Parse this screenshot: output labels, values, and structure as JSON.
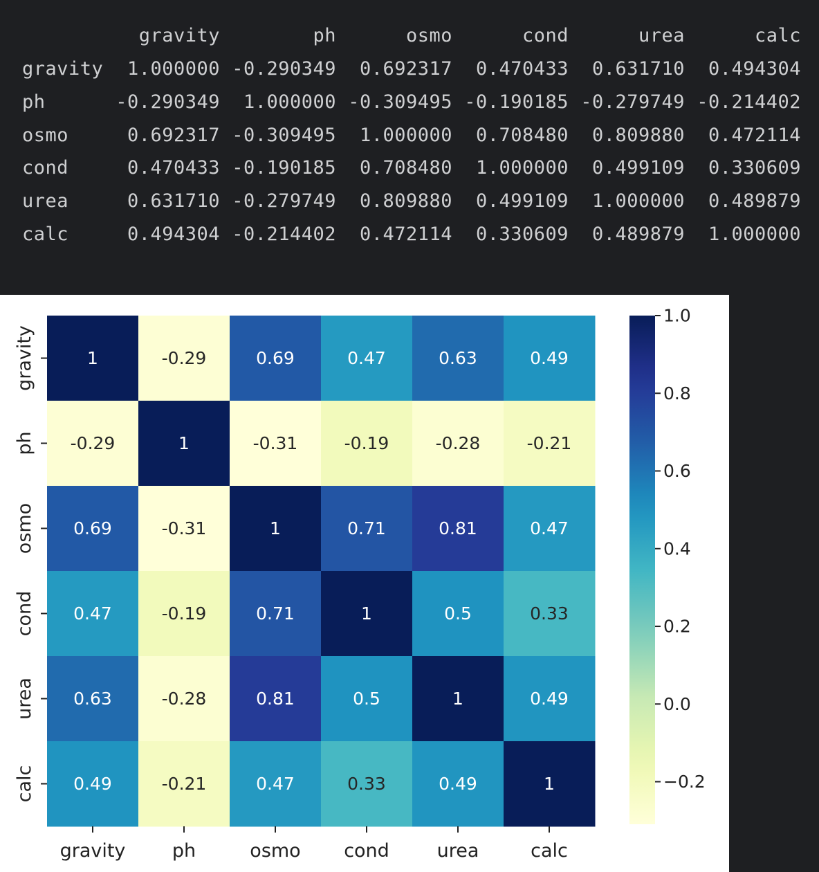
{
  "dataframe": {
    "columns": [
      "gravity",
      "ph",
      "osmo",
      "cond",
      "urea",
      "calc"
    ],
    "rows": [
      {
        "label": "gravity",
        "values": [
          "1.000000",
          "-0.290349",
          "0.692317",
          "0.470433",
          "0.631710",
          "0.494304"
        ]
      },
      {
        "label": "ph",
        "values": [
          "-0.290349",
          "1.000000",
          "-0.309495",
          "-0.190185",
          "-0.279749",
          "-0.214402"
        ]
      },
      {
        "label": "osmo",
        "values": [
          "0.692317",
          "-0.309495",
          "1.000000",
          "0.708480",
          "0.809880",
          "0.472114"
        ]
      },
      {
        "label": "cond",
        "values": [
          "0.470433",
          "-0.190185",
          "0.708480",
          "1.000000",
          "0.499109",
          "0.330609"
        ]
      },
      {
        "label": "urea",
        "values": [
          "0.631710",
          "-0.279749",
          "0.809880",
          "0.499109",
          "1.000000",
          "0.489879"
        ]
      },
      {
        "label": "calc",
        "values": [
          "0.494304",
          "-0.214402",
          "0.472114",
          "0.330609",
          "0.489879",
          "1.000000"
        ]
      }
    ]
  },
  "chart_data": {
    "type": "heatmap",
    "title": "",
    "xlabel": "",
    "ylabel": "",
    "x": [
      "gravity",
      "ph",
      "osmo",
      "cond",
      "urea",
      "calc"
    ],
    "y": [
      "gravity",
      "ph",
      "osmo",
      "cond",
      "urea",
      "calc"
    ],
    "values": [
      [
        1.0,
        -0.290349,
        0.692317,
        0.470433,
        0.63171,
        0.494304
      ],
      [
        -0.290349,
        1.0,
        -0.309495,
        -0.190185,
        -0.279749,
        -0.214402
      ],
      [
        0.692317,
        -0.309495,
        1.0,
        0.70848,
        0.80988,
        0.472114
      ],
      [
        0.470433,
        -0.190185,
        0.70848,
        1.0,
        0.499109,
        0.330609
      ],
      [
        0.63171,
        -0.279749,
        0.80988,
        0.499109,
        1.0,
        0.489879
      ],
      [
        0.494304,
        -0.214402,
        0.472114,
        0.330609,
        0.489879,
        1.0
      ]
    ],
    "annotations": [
      [
        "1",
        "-0.29",
        "0.69",
        "0.47",
        "0.63",
        "0.49"
      ],
      [
        "-0.29",
        "1",
        "-0.31",
        "-0.19",
        "-0.28",
        "-0.21"
      ],
      [
        "0.69",
        "-0.31",
        "1",
        "0.71",
        "0.81",
        "0.47"
      ],
      [
        "0.47",
        "-0.19",
        "0.71",
        "1",
        "0.5",
        "0.33"
      ],
      [
        "0.63",
        "-0.28",
        "0.81",
        "0.5",
        "1",
        "0.49"
      ],
      [
        "0.49",
        "-0.21",
        "0.47",
        "0.33",
        "0.49",
        "1"
      ]
    ],
    "colormap": "YlGnBu",
    "colorbar": {
      "range": [
        -0.309495,
        1.0
      ],
      "ticks": [
        1.0,
        0.8,
        0.6,
        0.4,
        0.2,
        0.0,
        -0.2
      ],
      "tick_labels": [
        "1.0",
        "0.8",
        "0.6",
        "0.4",
        "0.2",
        "0.0",
        "−0.2"
      ],
      "placement": "right"
    }
  }
}
